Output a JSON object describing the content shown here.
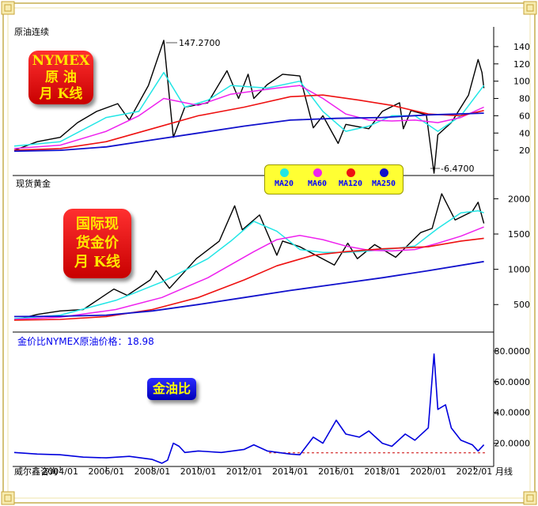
{
  "panels": {
    "oil": {
      "title": "原油连续",
      "badge": [
        "NYMEX",
        "原 油",
        "月 K线"
      ]
    },
    "gold": {
      "title": "现货黄金",
      "badge": [
        "国际现",
        "货金价",
        "月 K线"
      ]
    },
    "ratio": {
      "title": "金价比NYMEX原油价格：18.98",
      "badge": "金油比"
    }
  },
  "legend": [
    {
      "label": "MA20",
      "color": "#22e6e6"
    },
    {
      "label": "MA60",
      "color": "#ee22ee"
    },
    {
      "label": "MA120",
      "color": "#ee1111"
    },
    {
      "label": "MA250",
      "color": "#1111cc"
    }
  ],
  "annotations": {
    "oil_high": "147.2700",
    "oil_low": "-6.4700"
  },
  "footer": {
    "source": "威尔鑫咨询",
    "period": "月线"
  },
  "chart_data": [
    {
      "type": "line",
      "title": "原油连续",
      "y_ticks": [
        "20",
        "40",
        "60",
        "80",
        "100",
        "120",
        "140"
      ],
      "ylim": [
        0,
        150
      ],
      "x_range": [
        "2002/01",
        "2022/06"
      ],
      "series": [
        {
          "name": "price",
          "points": [
            [
              "2002/01",
              20
            ],
            [
              "2003/01",
              30
            ],
            [
              "2004/01",
              35
            ],
            [
              "2004/10",
              52
            ],
            [
              "2005/08",
              65
            ],
            [
              "2006/07",
              74
            ],
            [
              "2007/01",
              55
            ],
            [
              "2007/11",
              95
            ],
            [
              "2008/07",
              147.27
            ],
            [
              "2008/12",
              35
            ],
            [
              "2009/06",
              70
            ],
            [
              "2010/06",
              75
            ],
            [
              "2011/04",
              112
            ],
            [
              "2011/10",
              80
            ],
            [
              "2012/03",
              108
            ],
            [
              "2012/06",
              80
            ],
            [
              "2013/01",
              96
            ],
            [
              "2013/09",
              108
            ],
            [
              "2014/06",
              106
            ],
            [
              "2015/01",
              46
            ],
            [
              "2015/06",
              60
            ],
            [
              "2016/02",
              28
            ],
            [
              "2016/06",
              50
            ],
            [
              "2017/06",
              45
            ],
            [
              "2018/01",
              65
            ],
            [
              "2018/10",
              75
            ],
            [
              "2018/12",
              45
            ],
            [
              "2019/04",
              66
            ],
            [
              "2019/12",
              61
            ],
            [
              "2020/04",
              -6.47
            ],
            [
              "2020/06",
              38
            ],
            [
              "2021/01",
              52
            ],
            [
              "2021/10",
              84
            ],
            [
              "2022/03",
              125
            ],
            [
              "2022/05",
              110
            ],
            [
              "2022/06",
              92
            ]
          ]
        },
        {
          "name": "MA20",
          "points": [
            [
              "2002/01",
              25
            ],
            [
              "2004/01",
              30
            ],
            [
              "2006/01",
              58
            ],
            [
              "2007/06",
              65
            ],
            [
              "2008/07",
              110
            ],
            [
              "2009/06",
              70
            ],
            [
              "2010/06",
              78
            ],
            [
              "2011/06",
              95
            ],
            [
              "2013/01",
              92
            ],
            [
              "2014/06",
              100
            ],
            [
              "2015/06",
              65
            ],
            [
              "2016/06",
              42
            ],
            [
              "2017/06",
              48
            ],
            [
              "2018/06",
              60
            ],
            [
              "2019/06",
              60
            ],
            [
              "2020/06",
              42
            ],
            [
              "2021/06",
              60
            ],
            [
              "2022/06",
              95
            ]
          ]
        },
        {
          "name": "MA60",
          "points": [
            [
              "2002/01",
              22
            ],
            [
              "2004/01",
              26
            ],
            [
              "2006/01",
              42
            ],
            [
              "2007/06",
              60
            ],
            [
              "2008/07",
              80
            ],
            [
              "2010/01",
              72
            ],
            [
              "2011/06",
              85
            ],
            [
              "2013/06",
              92
            ],
            [
              "2014/06",
              95
            ],
            [
              "2015/06",
              80
            ],
            [
              "2016/06",
              62
            ],
            [
              "2017/06",
              55
            ],
            [
              "2018/06",
              54
            ],
            [
              "2019/06",
              55
            ],
            [
              "2020/06",
              52
            ],
            [
              "2021/06",
              58
            ],
            [
              "2022/06",
              70
            ]
          ]
        },
        {
          "name": "MA120",
          "points": [
            [
              "2002/01",
              20
            ],
            [
              "2004/01",
              22
            ],
            [
              "2006/01",
              30
            ],
            [
              "2008/01",
              45
            ],
            [
              "2010/01",
              60
            ],
            [
              "2012/01",
              70
            ],
            [
              "2014/01",
              82
            ],
            [
              "2015/06",
              84
            ],
            [
              "2017/01",
              78
            ],
            [
              "2018/06",
              72
            ],
            [
              "2020/01",
              62
            ],
            [
              "2021/06",
              60
            ],
            [
              "2022/06",
              66
            ]
          ]
        },
        {
          "name": "MA250",
          "points": [
            [
              "2002/01",
              19
            ],
            [
              "2004/01",
              20
            ],
            [
              "2006/01",
              24
            ],
            [
              "2008/01",
              32
            ],
            [
              "2010/01",
              40
            ],
            [
              "2012/01",
              48
            ],
            [
              "2014/01",
              55
            ],
            [
              "2016/01",
              57
            ],
            [
              "2018/01",
              58
            ],
            [
              "2020/01",
              61
            ],
            [
              "2022/06",
              63
            ]
          ]
        }
      ]
    },
    {
      "type": "line",
      "title": "现货黄金",
      "y_ticks": [
        "500",
        "1000",
        "1500",
        "2000"
      ],
      "ylim": [
        200,
        2150
      ],
      "x_range": [
        "2002/01",
        "2022/06"
      ],
      "series": [
        {
          "name": "price",
          "points": [
            [
              "2002/01",
              280
            ],
            [
              "2003/01",
              360
            ],
            [
              "2004/01",
              410
            ],
            [
              "2005/01",
              430
            ],
            [
              "2006/05",
              720
            ],
            [
              "2006/12",
              630
            ],
            [
              "2007/12",
              850
            ],
            [
              "2008/03",
              980
            ],
            [
              "2008/10",
              730
            ],
            [
              "2009/12",
              1150
            ],
            [
              "2010/12",
              1400
            ],
            [
              "2011/08",
              1900
            ],
            [
              "2011/12",
              1560
            ],
            [
              "2012/09",
              1770
            ],
            [
              "2013/06",
              1200
            ],
            [
              "2013/09",
              1400
            ],
            [
              "2014/06",
              1320
            ],
            [
              "2015/12",
              1060
            ],
            [
              "2016/07",
              1370
            ],
            [
              "2016/12",
              1150
            ],
            [
              "2017/09",
              1350
            ],
            [
              "2018/08",
              1170
            ],
            [
              "2019/09",
              1520
            ],
            [
              "2020/03",
              1580
            ],
            [
              "2020/08",
              2070
            ],
            [
              "2021/03",
              1700
            ],
            [
              "2021/12",
              1820
            ],
            [
              "2022/03",
              1950
            ],
            [
              "2022/06",
              1650
            ]
          ]
        },
        {
          "name": "MA20",
          "points": [
            [
              "2002/01",
              300
            ],
            [
              "2004/01",
              350
            ],
            [
              "2006/06",
              560
            ],
            [
              "2008/06",
              820
            ],
            [
              "2010/06",
              1150
            ],
            [
              "2011/06",
              1400
            ],
            [
              "2012/06",
              1680
            ],
            [
              "2013/06",
              1540
            ],
            [
              "2014/06",
              1280
            ],
            [
              "2015/06",
              1240
            ],
            [
              "2016/06",
              1240
            ],
            [
              "2017/06",
              1260
            ],
            [
              "2018/06",
              1290
            ],
            [
              "2019/06",
              1330
            ],
            [
              "2020/06",
              1580
            ],
            [
              "2021/06",
              1800
            ],
            [
              "2022/03",
              1830
            ],
            [
              "2022/06",
              1800
            ]
          ]
        },
        {
          "name": "MA60",
          "points": [
            [
              "2002/01",
              290
            ],
            [
              "2004/01",
              320
            ],
            [
              "2006/06",
              430
            ],
            [
              "2008/06",
              600
            ],
            [
              "2010/06",
              880
            ],
            [
              "2012/06",
              1250
            ],
            [
              "2013/06",
              1420
            ],
            [
              "2014/06",
              1480
            ],
            [
              "2015/06",
              1420
            ],
            [
              "2016/06",
              1330
            ],
            [
              "2017/06",
              1270
            ],
            [
              "2018/06",
              1260
            ],
            [
              "2019/06",
              1280
            ],
            [
              "2020/06",
              1370
            ],
            [
              "2021/06",
              1470
            ],
            [
              "2022/06",
              1600
            ]
          ]
        },
        {
          "name": "MA120",
          "points": [
            [
              "2002/01",
              280
            ],
            [
              "2004/01",
              290
            ],
            [
              "2006/01",
              330
            ],
            [
              "2008/01",
              430
            ],
            [
              "2010/01",
              600
            ],
            [
              "2012/01",
              850
            ],
            [
              "2013/06",
              1050
            ],
            [
              "2015/01",
              1200
            ],
            [
              "2016/06",
              1250
            ],
            [
              "2018/01",
              1290
            ],
            [
              "2020/01",
              1320
            ],
            [
              "2021/06",
              1400
            ],
            [
              "2022/06",
              1440
            ]
          ]
        },
        {
          "name": "MA250",
          "points": [
            [
              "2002/01",
              330
            ],
            [
              "2004/01",
              335
            ],
            [
              "2006/01",
              350
            ],
            [
              "2008/01",
              410
            ],
            [
              "2010/01",
              500
            ],
            [
              "2012/01",
              600
            ],
            [
              "2014/01",
              700
            ],
            [
              "2016/01",
              790
            ],
            [
              "2018/01",
              880
            ],
            [
              "2020/01",
              980
            ],
            [
              "2022/06",
              1110
            ]
          ]
        }
      ]
    },
    {
      "type": "line",
      "title": "金价比NYMEX原油价格：18.98",
      "y_ticks": [
        "20.0000",
        "40.0000",
        "60.0000",
        "80.0000"
      ],
      "ylim": [
        8,
        82
      ],
      "x_ticks": [
        "2004/01",
        "2006/01",
        "2008/01",
        "2010/01",
        "2012/01",
        "2014/01",
        "2016/01",
        "2018/01",
        "2020/01",
        "2022/01"
      ],
      "x_range": [
        "2002/01",
        "2022/06"
      ],
      "reference_line": 13.8,
      "series": [
        {
          "name": "金油比",
          "points": [
            [
              "2002/01",
              14
            ],
            [
              "2003/01",
              13
            ],
            [
              "2004/01",
              12.5
            ],
            [
              "2005/01",
              11
            ],
            [
              "2006/01",
              10.5
            ],
            [
              "2007/01",
              11.5
            ],
            [
              "2008/01",
              9.5
            ],
            [
              "2008/06",
              7
            ],
            [
              "2008/09",
              9
            ],
            [
              "2008/12",
              20
            ],
            [
              "2009/03",
              18
            ],
            [
              "2009/06",
              14
            ],
            [
              "2010/01",
              15
            ],
            [
              "2011/01",
              14
            ],
            [
              "2012/01",
              16
            ],
            [
              "2012/06",
              19
            ],
            [
              "2013/01",
              15
            ],
            [
              "2014/01",
              13
            ],
            [
              "2014/06",
              12.5
            ],
            [
              "2015/01",
              24
            ],
            [
              "2015/06",
              20
            ],
            [
              "2016/01",
              35
            ],
            [
              "2016/06",
              26
            ],
            [
              "2017/01",
              24
            ],
            [
              "2017/06",
              28
            ],
            [
              "2018/01",
              20
            ],
            [
              "2018/06",
              18
            ],
            [
              "2019/01",
              26
            ],
            [
              "2019/06",
              22
            ],
            [
              "2020/01",
              30
            ],
            [
              "2020/04",
              78
            ],
            [
              "2020/06",
              42
            ],
            [
              "2020/10",
              45
            ],
            [
              "2021/01",
              30
            ],
            [
              "2021/06",
              22
            ],
            [
              "2021/12",
              19
            ],
            [
              "2022/03",
              15
            ],
            [
              "2022/06",
              18.98
            ]
          ]
        }
      ]
    }
  ]
}
